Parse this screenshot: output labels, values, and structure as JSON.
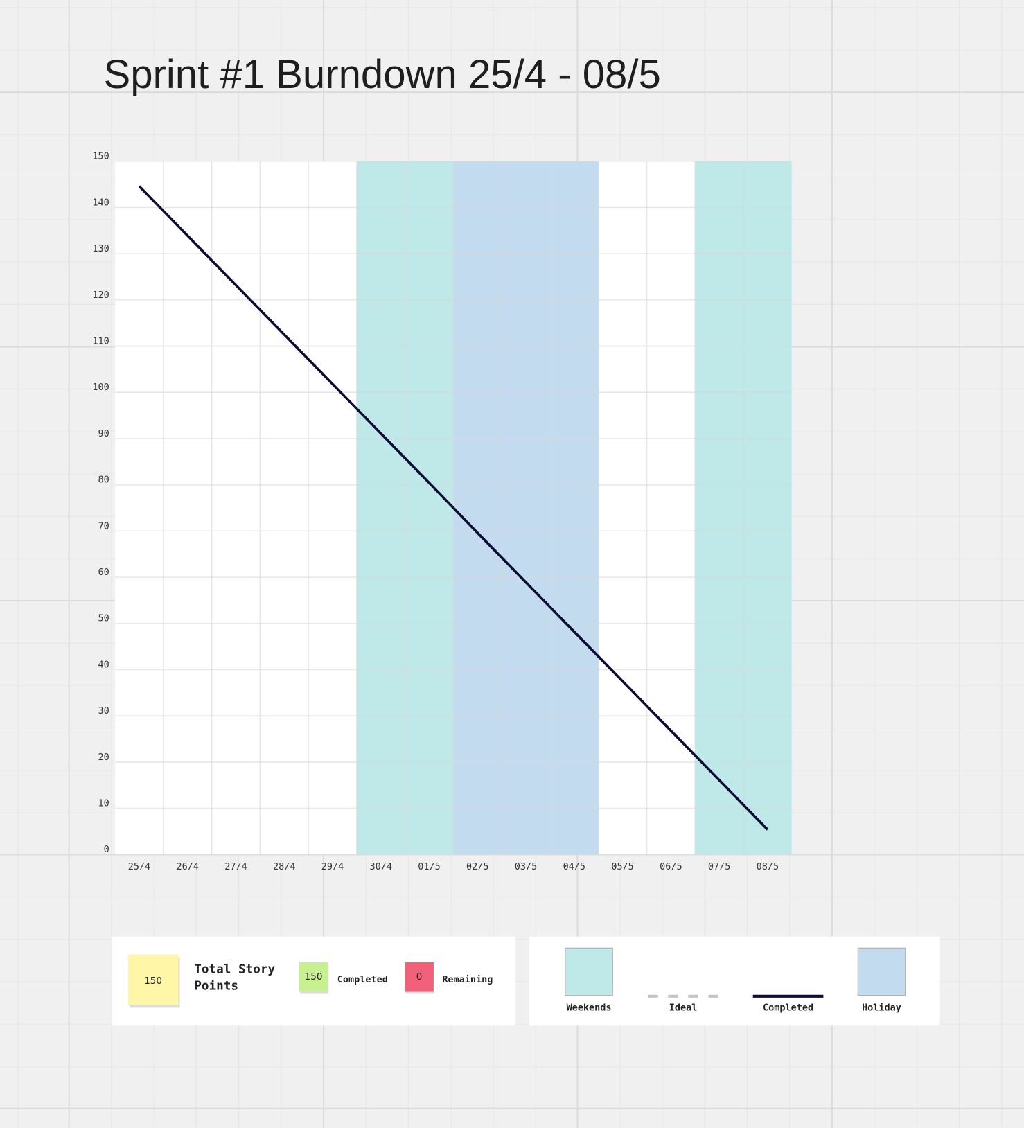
{
  "chart_data": {
    "type": "line",
    "title": "Sprint #1 Burndown 25/4 - 08/5",
    "categories": [
      "25/4",
      "26/4",
      "27/4",
      "28/4",
      "29/4",
      "30/4",
      "01/5",
      "02/5",
      "03/5",
      "04/5",
      "05/5",
      "06/5",
      "07/5",
      "08/5"
    ],
    "series": [
      {
        "name": "Ideal",
        "color": "#c4c4c4",
        "dashed": true,
        "values": [
          144.6,
          133.9,
          123.2,
          112.5,
          101.8,
          91.1,
          80.4,
          69.6,
          58.9,
          48.2,
          37.5,
          26.8,
          16.1,
          5.4
        ]
      },
      {
        "name": "Completed",
        "color": "#0b0b35",
        "dashed": false,
        "values": [
          144.6,
          133.9,
          123.2,
          112.5,
          101.8,
          91.1,
          80.4,
          69.6,
          58.9,
          48.2,
          37.5,
          26.8,
          16.1,
          5.4
        ]
      }
    ],
    "shaded": [
      {
        "name": "Weekends",
        "color": "#bfe8e8",
        "categories": [
          "30/4",
          "01/5",
          "07/5",
          "08/5"
        ]
      },
      {
        "name": "Holiday",
        "color": "#c3dbee",
        "categories": [
          "02/5",
          "03/5",
          "04/5"
        ]
      }
    ],
    "ylim": [
      0,
      150
    ],
    "yticks": [
      0,
      10,
      20,
      30,
      40,
      50,
      60,
      70,
      80,
      90,
      100,
      110,
      120,
      130,
      140,
      150
    ],
    "grid": true
  },
  "summary": {
    "total": 150,
    "total_label": "Total Story Points",
    "completed": 150,
    "completed_label": "Completed",
    "remaining": 0,
    "remaining_label": "Remaining"
  }
}
